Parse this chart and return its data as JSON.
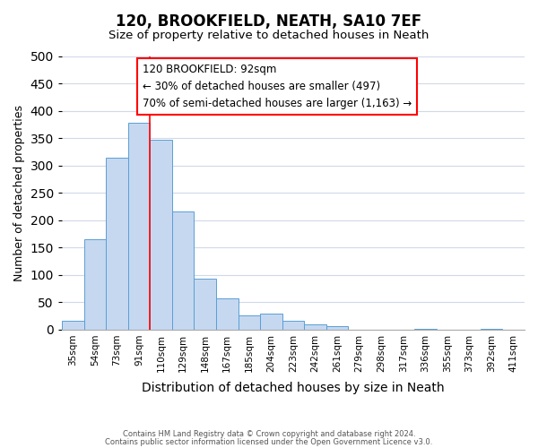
{
  "title": "120, BROOKFIELD, NEATH, SA10 7EF",
  "subtitle": "Size of property relative to detached houses in Neath",
  "xlabel": "Distribution of detached houses by size in Neath",
  "ylabel": "Number of detached properties",
  "footnote1": "Contains HM Land Registry data © Crown copyright and database right 2024.",
  "footnote2": "Contains public sector information licensed under the Open Government Licence v3.0.",
  "bin_labels": [
    "35sqm",
    "54sqm",
    "73sqm",
    "91sqm",
    "110sqm",
    "129sqm",
    "148sqm",
    "167sqm",
    "185sqm",
    "204sqm",
    "223sqm",
    "242sqm",
    "261sqm",
    "279sqm",
    "298sqm",
    "317sqm",
    "336sqm",
    "355sqm",
    "373sqm",
    "392sqm",
    "411sqm"
  ],
  "bar_values": [
    17,
    165,
    314,
    379,
    347,
    216,
    94,
    57,
    26,
    30,
    16,
    10,
    7,
    0,
    0,
    0,
    2,
    0,
    0,
    2,
    0
  ],
  "bar_color": "#c5d8f0",
  "bar_edge_color": "#5a9fd4",
  "red_line_x": 3.5,
  "annotation_box_text": "120 BROOKFIELD: 92sqm\n← 30% of detached houses are smaller (497)\n70% of semi-detached houses are larger (1,163) →",
  "annotation_box_facecolor": "white",
  "annotation_box_edgecolor": "red",
  "ylim": [
    0,
    500
  ],
  "yticks": [
    0,
    50,
    100,
    150,
    200,
    250,
    300,
    350,
    400,
    450,
    500
  ],
  "background_color": "white",
  "grid_color": "#d0d8e8"
}
